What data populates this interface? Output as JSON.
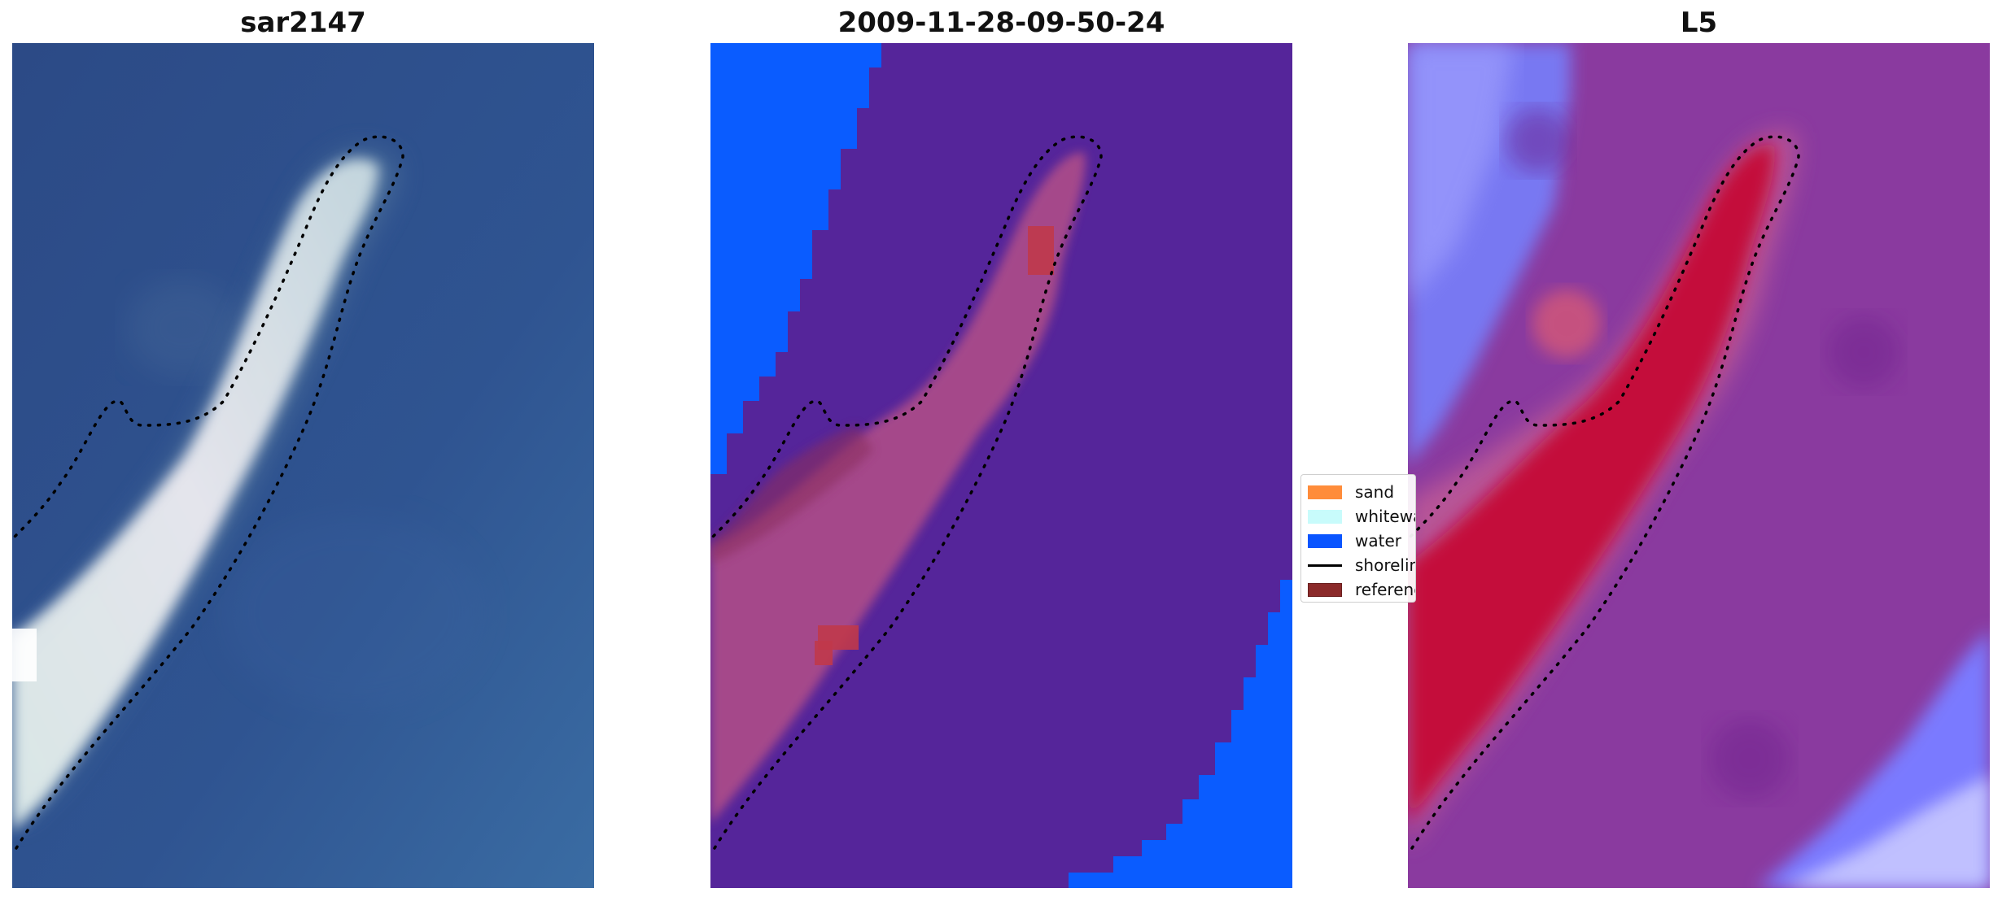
{
  "panels": [
    {
      "title": "sar2147",
      "kind": "rgb-image"
    },
    {
      "title": "2009-11-28-09-50-24",
      "kind": "classified-image"
    },
    {
      "title": "L5",
      "kind": "probability-image"
    }
  ],
  "legend": {
    "items": [
      {
        "label": "sand",
        "color": "#ff8c3a",
        "kind": "patch"
      },
      {
        "label": "whitewater",
        "color": "#c8fbfb",
        "kind": "patch"
      },
      {
        "label": "water",
        "color": "#0a55ff",
        "kind": "patch"
      },
      {
        "label": "shoreline",
        "color": "#000000",
        "kind": "line"
      },
      {
        "label": "reference",
        "color": "#8b2a2a",
        "kind": "patch"
      }
    ]
  },
  "colors": {
    "sea_blue": "#2d4f8c",
    "water_class": "#0a5cff",
    "background_class": "#55259a",
    "sand_overlay": "#b45088",
    "probability_red": "#c40c3a",
    "probability_purple": "#8a3a9f",
    "probability_light": "#8a8aff"
  }
}
